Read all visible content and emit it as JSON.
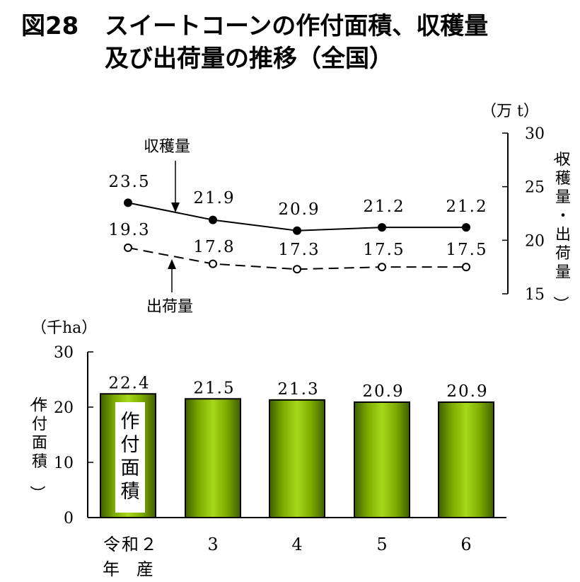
{
  "title": {
    "figure_no": "図28",
    "line1": "スイートコーンの作付面積、収穫量",
    "line2": "及び出荷量の推移（全国）"
  },
  "chart_data": [
    {
      "type": "line",
      "unit": "（万 t）",
      "ylabel": "（収穫量・出荷量）",
      "ylim": [
        15,
        30
      ],
      "yticks": [
        "30",
        "25",
        "20",
        "15"
      ],
      "x": [
        "令和２年産",
        "3",
        "4",
        "5",
        "6"
      ],
      "series": [
        {
          "name": "収穫量",
          "values": [
            23.5,
            21.9,
            20.9,
            21.2,
            21.2
          ],
          "labels": [
            "23.5",
            "21.9",
            "20.9",
            "21.2",
            "21.2"
          ],
          "style": "solid",
          "marker": "filled"
        },
        {
          "name": "出荷量",
          "values": [
            19.3,
            17.8,
            17.3,
            17.5,
            17.5
          ],
          "labels": [
            "19.3",
            "17.8",
            "17.3",
            "17.5",
            "17.5"
          ],
          "style": "dashed",
          "marker": "open"
        }
      ]
    },
    {
      "type": "bar",
      "unit": "（千ha）",
      "ylabel": "（作付面積）",
      "ylim": [
        0,
        30
      ],
      "yticks": [
        "30",
        "20",
        "10",
        "0"
      ],
      "categories": [
        "令和２",
        "3",
        "4",
        "5",
        "6"
      ],
      "category_line2": "年　産",
      "values": [
        22.4,
        21.5,
        21.3,
        20.9,
        20.9
      ],
      "labels": [
        "22.4",
        "21.5",
        "21.3",
        "20.9",
        "20.9"
      ],
      "series_label": "作付面積",
      "bar_color": "#8fbf00"
    }
  ]
}
